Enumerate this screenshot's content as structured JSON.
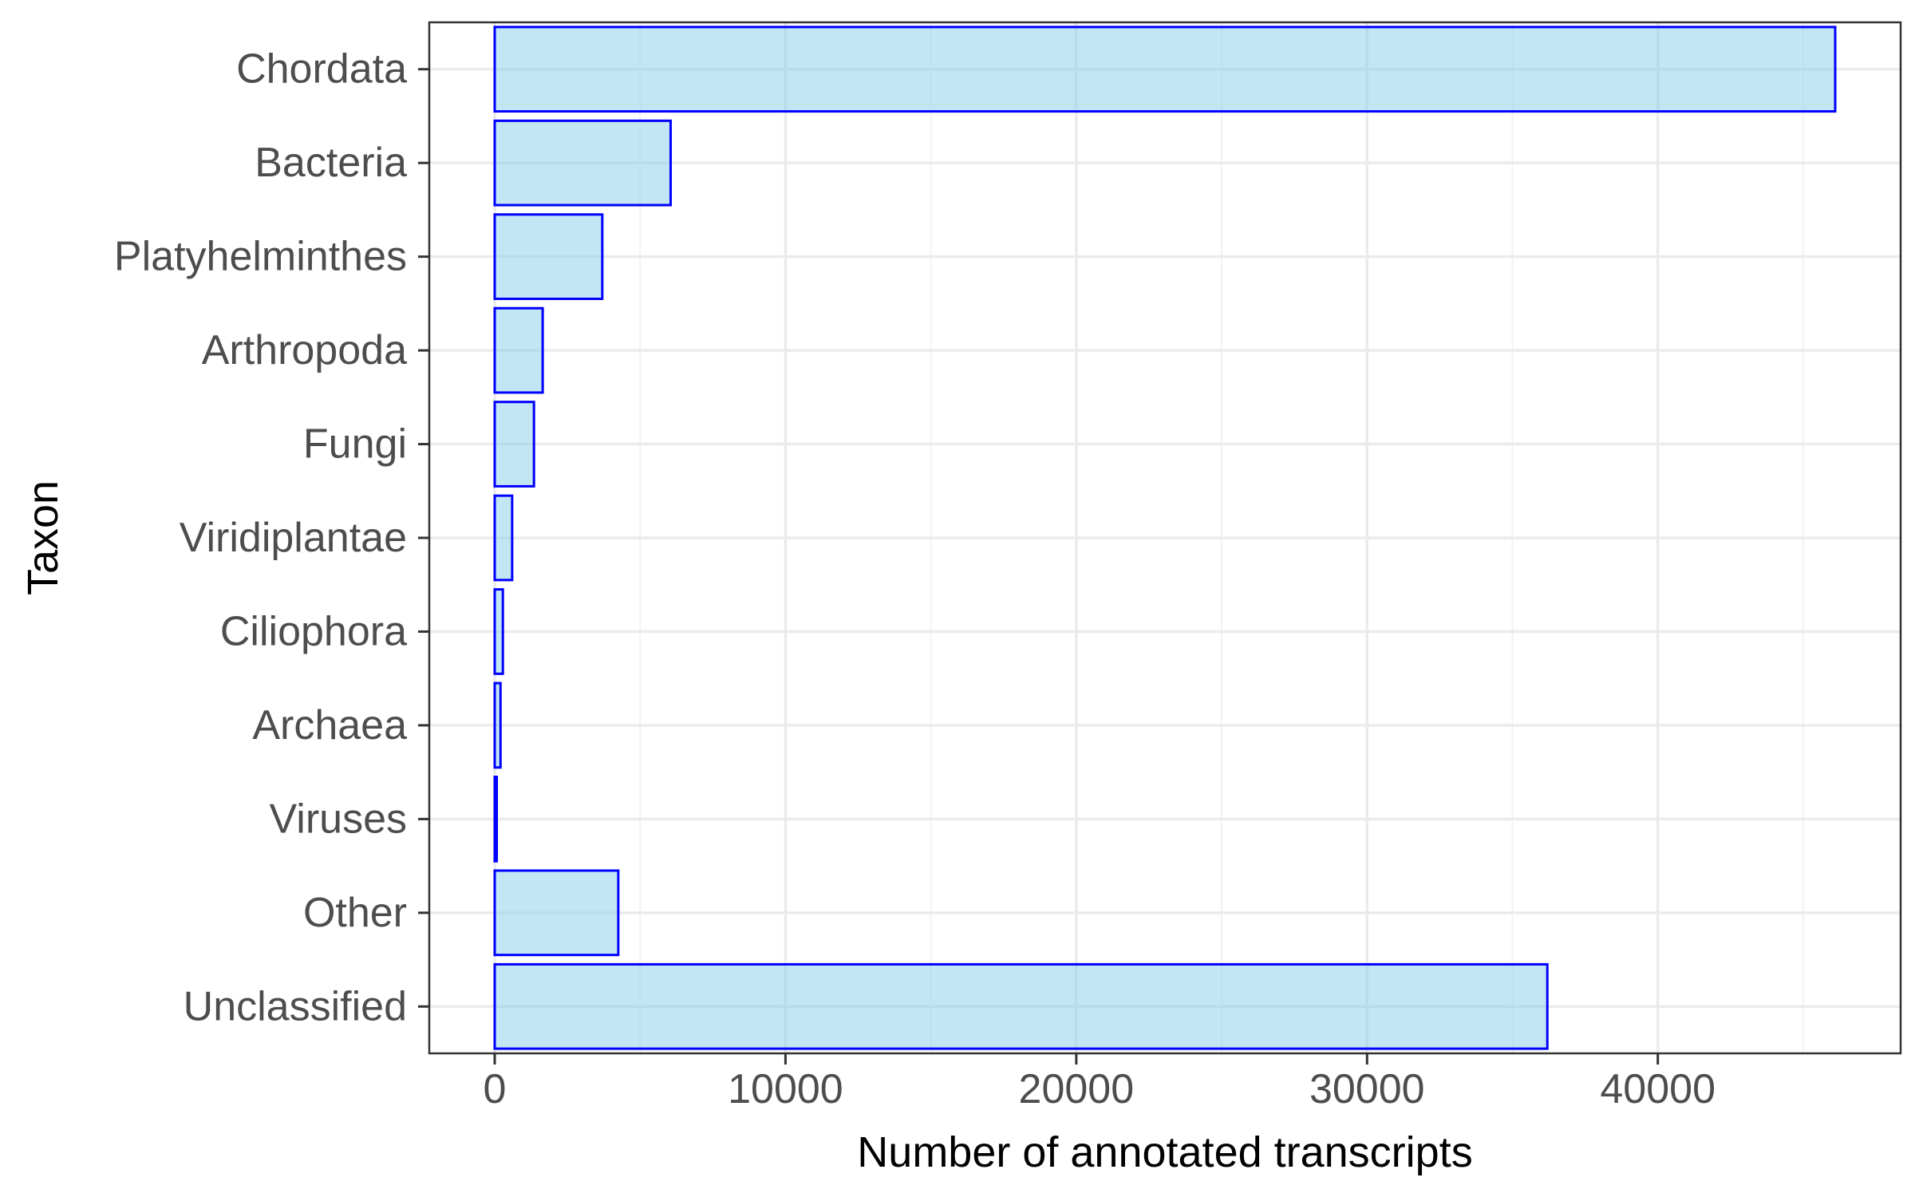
{
  "chart_data": {
    "type": "bar",
    "orientation": "horizontal",
    "title": "",
    "xlabel": "Number of annotated transcripts",
    "ylabel": "Taxon",
    "categories": [
      "Chordata",
      "Bacteria",
      "Platyhelminthes",
      "Arthropoda",
      "Fungi",
      "Viridiplantae",
      "Ciliophora",
      "Archaea",
      "Viruses",
      "Other",
      "Unclassified"
    ],
    "values": [
      46100,
      6050,
      3700,
      1650,
      1350,
      600,
      280,
      200,
      70,
      4250,
      36200
    ],
    "xlim": [
      -2250,
      48350
    ],
    "x_ticks": [
      0,
      10000,
      20000,
      30000,
      40000
    ],
    "x_tick_labels": [
      "0",
      "10000",
      "20000",
      "30000",
      "40000"
    ],
    "grid": true,
    "legend": "none",
    "colors": {
      "bar_fill": "#87ceeb",
      "bar_fill_opacity": 0.5,
      "bar_stroke": "#0000ff",
      "grid_major": "#ebebeb",
      "grid_minor": "#f2f2f2",
      "panel_border": "#333333",
      "tick_label": "#4d4d4d",
      "axis_title": "#000000"
    }
  }
}
